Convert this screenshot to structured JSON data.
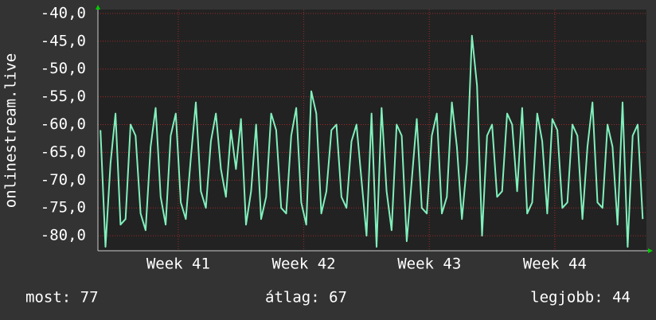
{
  "chart_data": {
    "type": "line",
    "ylabel": "onlinestream.live",
    "x": [
      40.38,
      40.42,
      40.46,
      40.5,
      40.54,
      40.58,
      40.62,
      40.66,
      40.7,
      40.74,
      40.78,
      40.82,
      40.86,
      40.9,
      40.94,
      40.98,
      41.02,
      41.06,
      41.1,
      41.14,
      41.18,
      41.22,
      41.26,
      41.3,
      41.34,
      41.38,
      41.42,
      41.46,
      41.5,
      41.54,
      41.58,
      41.62,
      41.66,
      41.7,
      41.74,
      41.78,
      41.82,
      41.86,
      41.9,
      41.94,
      41.98,
      42.02,
      42.06,
      42.1,
      42.14,
      42.18,
      42.22,
      42.26,
      42.3,
      42.34,
      42.38,
      42.42,
      42.46,
      42.5,
      42.54,
      42.58,
      42.62,
      42.66,
      42.7,
      42.74,
      42.78,
      42.82,
      42.86,
      42.9,
      42.94,
      42.98,
      43.02,
      43.06,
      43.1,
      43.14,
      43.18,
      43.22,
      43.26,
      43.3,
      43.34,
      43.38,
      43.42,
      43.46,
      43.5,
      43.54,
      43.58,
      43.62,
      43.66,
      43.7,
      43.74,
      43.78,
      43.82,
      43.86,
      43.9,
      43.94,
      43.98,
      44.02,
      44.06,
      44.1,
      44.14,
      44.18,
      44.22,
      44.26,
      44.3,
      44.34,
      44.38,
      44.42,
      44.46,
      44.5,
      44.54,
      44.58,
      44.62,
      44.66,
      44.7
    ],
    "values": [
      -61,
      -82,
      -67,
      -58,
      -78,
      -77,
      -60,
      -62,
      -76,
      -79,
      -64,
      -57,
      -73,
      -78,
      -62,
      -58,
      -74,
      -77,
      -66,
      -56,
      -72,
      -75,
      -63,
      -58,
      -68,
      -73,
      -61,
      -68,
      -59,
      -78,
      -72,
      -60,
      -77,
      -73,
      -58,
      -61,
      -75,
      -76,
      -62,
      -57,
      -74,
      -78,
      -54,
      -58,
      -76,
      -72,
      -61,
      -60,
      -73,
      -75,
      -63,
      -60,
      -70,
      -80,
      -58,
      -82,
      -57,
      -72,
      -79,
      -60,
      -62,
      -81,
      -70,
      -59,
      -75,
      -76,
      -62,
      -58,
      -76,
      -73,
      -56,
      -64,
      -77,
      -67,
      -44,
      -53,
      -80,
      -62,
      -60,
      -73,
      -72,
      -58,
      -60,
      -72,
      -57,
      -76,
      -74,
      -58,
      -63,
      -76,
      -59,
      -61,
      -75,
      -74,
      -60,
      -62,
      -77,
      -64,
      -56,
      -74,
      -75,
      -60,
      -64,
      -78,
      -56,
      -82,
      -62,
      -60,
      -77
    ],
    "color": "#80f0bc",
    "xlim": [
      40.36,
      44.73
    ],
    "xticks": [
      {
        "value": 41,
        "label": "Week 41"
      },
      {
        "value": 42,
        "label": "Week 42"
      },
      {
        "value": 43,
        "label": "Week 43"
      },
      {
        "value": 44,
        "label": "Week 44"
      }
    ],
    "ylim": [
      -82.7,
      -39.3
    ],
    "yticks": [
      {
        "value": -80,
        "label": "-80,0"
      },
      {
        "value": -75,
        "label": "-75,0"
      },
      {
        "value": -70,
        "label": "-70,0"
      },
      {
        "value": -65,
        "label": "-65,0"
      },
      {
        "value": -60,
        "label": "-60,0"
      },
      {
        "value": -55,
        "label": "-55,0"
      },
      {
        "value": -50,
        "label": "-50,0"
      },
      {
        "value": -45,
        "label": "-45,0"
      },
      {
        "value": -40,
        "label": "-40,0"
      }
    ],
    "grid": true,
    "stats": [
      "most: 77",
      "átlag: 67",
      "legjobb: 44"
    ]
  }
}
